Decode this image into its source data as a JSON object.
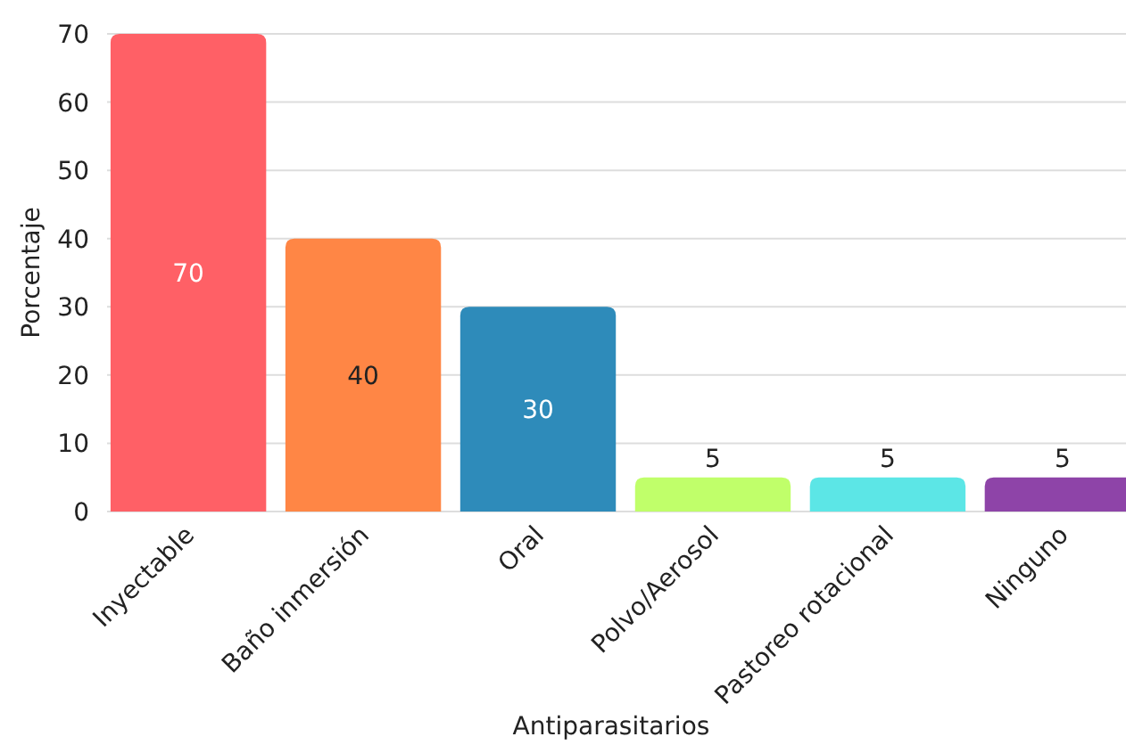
{
  "chart_data": {
    "type": "bar",
    "xlabel": "Antiparasitarios",
    "ylabel": "Porcentaje",
    "categories": [
      "Inyectable",
      "Baño inmersión",
      "Oral",
      "Polvo/Aerosol",
      "Pastoreo rotacional",
      "Ninguno"
    ],
    "values": [
      70,
      40,
      30,
      5,
      5,
      5
    ],
    "colors": [
      "#ff6066",
      "#ff8645",
      "#2e8bba",
      "#c0ff6a",
      "#5ce6e6",
      "#8e44a8"
    ],
    "ylim": [
      0,
      70
    ],
    "yticks": [
      0,
      10,
      20,
      30,
      40,
      50,
      60,
      70
    ],
    "grid": "y",
    "data_labels": true
  }
}
